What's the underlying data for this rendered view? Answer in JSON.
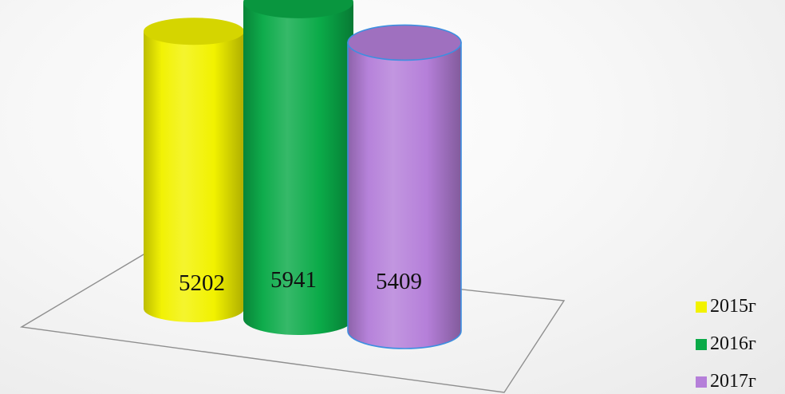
{
  "chart_data": {
    "type": "bar",
    "style": "3d-cylinder",
    "title": "",
    "xlabel": "",
    "ylabel": "",
    "categories": [
      "2015г",
      "2016г",
      "2017г"
    ],
    "values": [
      5202,
      5941,
      5409
    ],
    "colors": [
      "#f2f200",
      "#0aaa48",
      "#b57fd9"
    ],
    "legend_position": "bottom-right",
    "data_labels": true,
    "grid": false
  }
}
